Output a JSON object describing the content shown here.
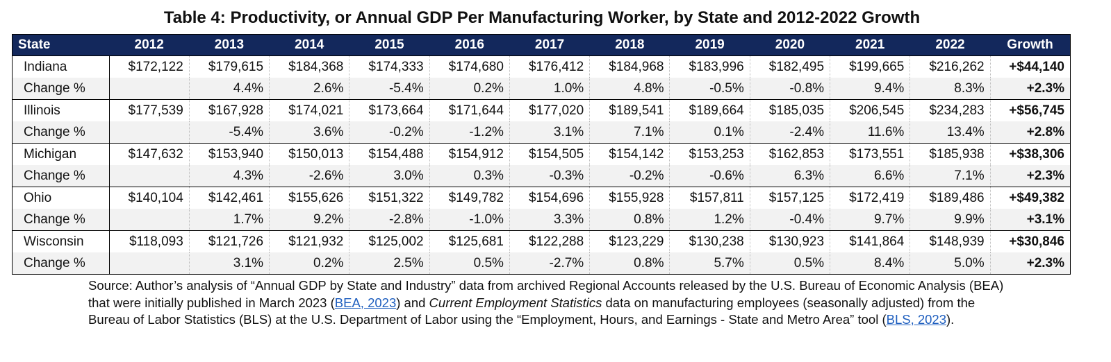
{
  "title": "Table 4: Productivity, or Annual GDP Per Manufacturing Worker, by State and 2012-2022 Growth",
  "headers": [
    "State",
    "2012",
    "2013",
    "2014",
    "2015",
    "2016",
    "2017",
    "2018",
    "2019",
    "2020",
    "2021",
    "2022",
    "Growth"
  ],
  "change_label": "Change %",
  "rows": [
    {
      "state": "Indiana",
      "values": [
        "$172,122",
        "$179,615",
        "$184,368",
        "$174,333",
        "$174,680",
        "$176,412",
        "$184,968",
        "$183,996",
        "$182,495",
        "$199,665",
        "$216,262",
        "+$44,140"
      ],
      "changes": [
        "",
        "4.4%",
        "2.6%",
        "-5.4%",
        "0.2%",
        "1.0%",
        "4.8%",
        "-0.5%",
        "-0.8%",
        "9.4%",
        "8.3%",
        "+2.3%"
      ]
    },
    {
      "state": "Illinois",
      "values": [
        "$177,539",
        "$167,928",
        "$174,021",
        "$173,664",
        "$171,644",
        "$177,020",
        "$189,541",
        "$189,664",
        "$185,035",
        "$206,545",
        "$234,283",
        "+$56,745"
      ],
      "changes": [
        "",
        "-5.4%",
        "3.6%",
        "-0.2%",
        "-1.2%",
        "3.1%",
        "7.1%",
        "0.1%",
        "-2.4%",
        "11.6%",
        "13.4%",
        "+2.8%"
      ]
    },
    {
      "state": "Michigan",
      "values": [
        "$147,632",
        "$153,940",
        "$150,013",
        "$154,488",
        "$154,912",
        "$154,505",
        "$154,142",
        "$153,253",
        "$162,853",
        "$173,551",
        "$185,938",
        "+$38,306"
      ],
      "changes": [
        "",
        "4.3%",
        "-2.6%",
        "3.0%",
        "0.3%",
        "-0.3%",
        "-0.2%",
        "-0.6%",
        "6.3%",
        "6.6%",
        "7.1%",
        "+2.3%"
      ]
    },
    {
      "state": "Ohio",
      "values": [
        "$140,104",
        "$142,461",
        "$155,626",
        "$151,322",
        "$149,782",
        "$154,696",
        "$155,928",
        "$157,811",
        "$157,125",
        "$172,419",
        "$189,486",
        "+$49,382"
      ],
      "changes": [
        "",
        "1.7%",
        "9.2%",
        "-2.8%",
        "-1.0%",
        "3.3%",
        "0.8%",
        "1.2%",
        "-0.4%",
        "9.7%",
        "9.9%",
        "+3.1%"
      ]
    },
    {
      "state": "Wisconsin",
      "values": [
        "$118,093",
        "$121,726",
        "$121,932",
        "$125,002",
        "$125,681",
        "$122,288",
        "$123,229",
        "$130,238",
        "$130,923",
        "$141,864",
        "$148,939",
        "+$30,846"
      ],
      "changes": [
        "",
        "3.1%",
        "0.2%",
        "2.5%",
        "0.5%",
        "-2.7%",
        "0.8%",
        "5.7%",
        "0.5%",
        "8.4%",
        "5.0%",
        "+2.3%"
      ]
    }
  ],
  "source": {
    "p1": "Source: Author’s analysis of “Annual GDP by State and Industry” data from archived Regional Accounts released by the U.S. Bureau of Economic Analysis (BEA) that were initially published in March 2023 (",
    "link1": "BEA, 2023",
    "p2": ") and ",
    "italic": "Current Employment Statistics",
    "p3": " data on manufacturing employees (seasonally adjusted) from the Bureau of Labor Statistics (BLS) at the U.S. Department of Labor using the “Employment, Hours, and Earnings - State and Metro Area” tool (",
    "link2": "BLS, 2023",
    "p4": ")."
  },
  "colors": {
    "header_bg": "#13285c",
    "change_row_bg": "#f2f2f2",
    "link": "#1f5fbf"
  }
}
